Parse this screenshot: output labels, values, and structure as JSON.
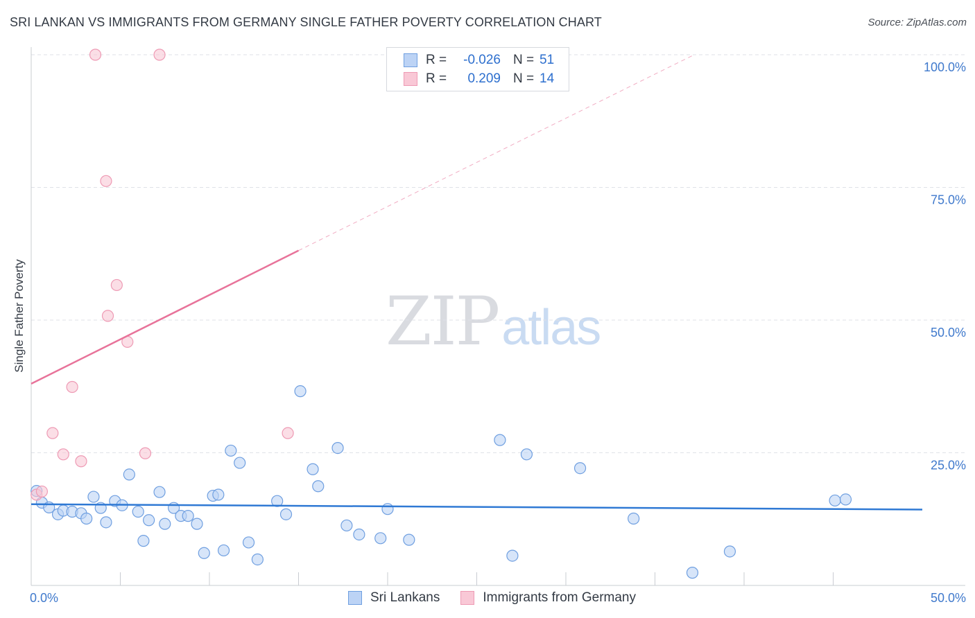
{
  "header": {
    "title": "SRI LANKAN VS IMMIGRANTS FROM GERMANY SINGLE FATHER POVERTY CORRELATION CHART",
    "source": "Source: ZipAtlas.com"
  },
  "watermark": {
    "zip": "ZIP",
    "atlas": "atlas"
  },
  "legend_top": {
    "rows": [
      {
        "r_label": "R =",
        "r_value": "-0.026",
        "n_label": "N =",
        "n_value": "51"
      },
      {
        "r_label": "R =",
        "r_value": "0.209",
        "n_label": "N =",
        "n_value": "14"
      }
    ]
  },
  "legend_bottom": {
    "items": [
      {
        "label": "Sri Lankans"
      },
      {
        "label": "Immigrants from Germany"
      }
    ]
  },
  "colors": {
    "blue_fill": "#bcd3f5",
    "blue_stroke": "#6f9fe0",
    "blue_line": "#2f79d4",
    "pink_fill": "#f9c8d6",
    "pink_stroke": "#ee9ab4",
    "pink_line": "#e8739a",
    "grid": "#dfe2e7",
    "tick_label": "#3f79cc"
  },
  "chart_data": {
    "type": "scatter",
    "title": "SRI LANKAN VS IMMIGRANTS FROM GERMANY SINGLE FATHER POVERTY CORRELATION CHART",
    "xlabel": "",
    "ylabel": "Single Father Poverty",
    "xlim": [
      0,
      50
    ],
    "ylim": [
      0,
      100
    ],
    "x_tick_labels": [
      {
        "value": 0,
        "label": "0.0%"
      },
      {
        "value": 50,
        "label": "50.0%"
      }
    ],
    "y_tick_labels": [
      {
        "value": 25,
        "label": "25.0%"
      },
      {
        "value": 50,
        "label": "50.0%"
      },
      {
        "value": 75,
        "label": "75.0%"
      },
      {
        "value": 100,
        "label": "100.0%"
      }
    ],
    "x_minor_ticks": [
      5,
      10,
      15,
      20,
      25,
      30,
      35,
      40,
      45
    ],
    "series": [
      {
        "name": "Sri Lankans",
        "color": "blue",
        "R": -0.026,
        "N": 51,
        "trend": {
          "x": [
            0,
            50
          ],
          "y": [
            15.3,
            14.3
          ],
          "dashed_to": null
        },
        "points": [
          [
            0.3,
            17.8
          ],
          [
            0.6,
            15.6
          ],
          [
            1.0,
            14.7
          ],
          [
            1.5,
            13.4
          ],
          [
            1.8,
            14.1
          ],
          [
            2.3,
            13.9
          ],
          [
            2.8,
            13.6
          ],
          [
            3.1,
            12.6
          ],
          [
            3.5,
            16.7
          ],
          [
            3.9,
            14.6
          ],
          [
            4.2,
            11.9
          ],
          [
            4.7,
            15.9
          ],
          [
            5.1,
            15.1
          ],
          [
            5.5,
            20.9
          ],
          [
            6.0,
            13.9
          ],
          [
            6.3,
            8.4
          ],
          [
            6.6,
            12.3
          ],
          [
            7.2,
            17.6
          ],
          [
            7.5,
            11.6
          ],
          [
            8.0,
            14.6
          ],
          [
            8.4,
            13.1
          ],
          [
            8.8,
            13.1
          ],
          [
            9.3,
            11.6
          ],
          [
            9.7,
            6.1
          ],
          [
            10.2,
            16.9
          ],
          [
            10.5,
            17.1
          ],
          [
            10.8,
            6.6
          ],
          [
            11.2,
            25.4
          ],
          [
            11.7,
            23.1
          ],
          [
            12.2,
            8.1
          ],
          [
            12.7,
            4.9
          ],
          [
            13.8,
            15.9
          ],
          [
            14.3,
            13.4
          ],
          [
            15.1,
            36.6
          ],
          [
            15.8,
            21.9
          ],
          [
            16.1,
            18.7
          ],
          [
            17.2,
            25.9
          ],
          [
            17.7,
            11.3
          ],
          [
            18.4,
            9.6
          ],
          [
            19.6,
            8.9
          ],
          [
            20.0,
            14.4
          ],
          [
            21.2,
            8.6
          ],
          [
            26.3,
            27.4
          ],
          [
            27.0,
            5.6
          ],
          [
            27.8,
            24.7
          ],
          [
            30.8,
            22.1
          ],
          [
            33.8,
            12.6
          ],
          [
            37.1,
            2.4
          ],
          [
            39.2,
            6.4
          ],
          [
            45.1,
            16.0
          ],
          [
            45.7,
            16.2
          ]
        ]
      },
      {
        "name": "Immigrants from Germany",
        "color": "pink",
        "R": 0.209,
        "N": 14,
        "trend": {
          "x": [
            0,
            15
          ],
          "y": [
            38.0,
            63.1
          ],
          "dashed_to": {
            "x": 37.2,
            "y": 100
          }
        },
        "points": [
          [
            0.3,
            17.1
          ],
          [
            0.6,
            17.7
          ],
          [
            1.2,
            28.7
          ],
          [
            1.8,
            24.7
          ],
          [
            2.3,
            37.4
          ],
          [
            2.8,
            23.4
          ],
          [
            3.6,
            100.0
          ],
          [
            4.2,
            76.2
          ],
          [
            4.8,
            56.6
          ],
          [
            4.3,
            50.8
          ],
          [
            5.4,
            45.9
          ],
          [
            6.4,
            24.9
          ],
          [
            7.2,
            100.0
          ],
          [
            14.4,
            28.7
          ]
        ]
      }
    ]
  }
}
